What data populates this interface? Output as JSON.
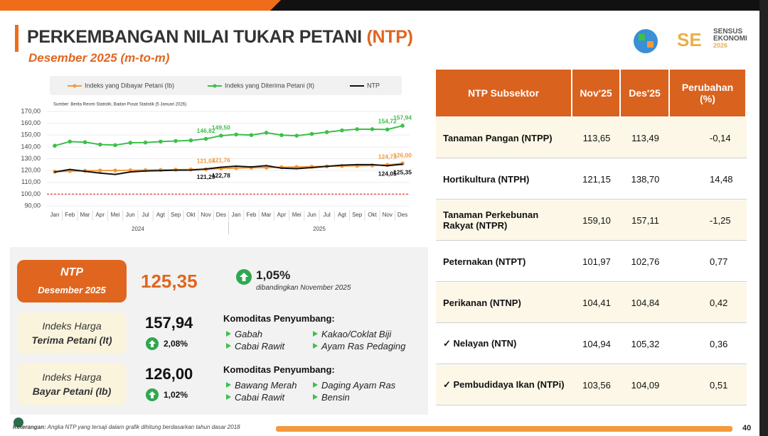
{
  "header": {
    "title": "PERKEMBANGAN NILAI TUKAR PETANI",
    "title_highlight": "(NTP)",
    "subtitle": "Desember 2025 (m-to-m)"
  },
  "logo": {
    "line1": "SENSUS",
    "line2": "EKONOMI",
    "line3": "2026"
  },
  "chart_data": {
    "type": "line",
    "source": "Sumber: Berita Resmi Statistik, Badan Pusat Statistik (5 Januari 2026)",
    "categories": [
      "Jan",
      "Feb",
      "Mar",
      "Apr",
      "Mei",
      "Jun",
      "Jul",
      "Agt",
      "Sep",
      "Okt",
      "Nov",
      "Des",
      "Jan",
      "Feb",
      "Mar",
      "Apr",
      "Mei",
      "Jun",
      "Jul",
      "Agt",
      "Sep",
      "Okt",
      "Nov",
      "Des"
    ],
    "x_groups": [
      "2024",
      "2025"
    ],
    "ylim": [
      90,
      170
    ],
    "yticks": [
      {
        "value": 90,
        "label": "90,00"
      },
      {
        "value": 100,
        "label": "100,00"
      },
      {
        "value": 110,
        "label": "110,00"
      },
      {
        "value": 120,
        "label": "120,00"
      },
      {
        "value": 130,
        "label": "130,00"
      },
      {
        "value": 140,
        "label": "140,00"
      },
      {
        "value": 150,
        "label": "150,00"
      },
      {
        "value": 160,
        "label": "160,00"
      },
      {
        "value": 170,
        "label": "170,00"
      }
    ],
    "reference_line": {
      "value": 100,
      "color": "#e5433b"
    },
    "series": [
      {
        "name": "Indeks yang Dibayar Petani (Ib)",
        "color": "#f39a3c",
        "marker": true,
        "label_side": "above",
        "values": [
          119,
          119.5,
          119.8,
          120,
          120,
          120.2,
          120.3,
          120.5,
          120.7,
          120.9,
          121.04,
          121.76,
          122,
          122.3,
          122.5,
          122.8,
          123,
          123.2,
          123.5,
          123.8,
          124,
          124.3,
          124.73,
          126
        ],
        "value_labels": [
          null,
          null,
          null,
          null,
          null,
          null,
          null,
          null,
          null,
          null,
          "121,04",
          "121,76",
          null,
          null,
          null,
          null,
          null,
          null,
          null,
          null,
          null,
          null,
          "124,73",
          "126,00"
        ]
      },
      {
        "name": "Indeks yang Diterima Petani (It)",
        "color": "#3cc04a",
        "marker": true,
        "label_side": "above",
        "values": [
          141,
          144.5,
          144,
          142,
          141.5,
          143.5,
          143.7,
          144.5,
          145,
          145.5,
          146.82,
          149.5,
          150.5,
          150,
          152,
          150,
          149.5,
          151,
          152.5,
          154,
          155,
          155,
          154.72,
          157.94
        ],
        "value_labels": [
          null,
          null,
          null,
          null,
          null,
          null,
          null,
          null,
          null,
          null,
          "146,82",
          "149,50",
          null,
          null,
          null,
          null,
          null,
          null,
          null,
          null,
          null,
          null,
          "154,72",
          "157,94"
        ]
      },
      {
        "name": "NTP",
        "color": "#111111",
        "marker": false,
        "label_side": "below",
        "values": [
          118.7,
          120.9,
          119.3,
          117.8,
          116.7,
          118.8,
          119.6,
          119.9,
          120.3,
          120.4,
          121.29,
          122.78,
          123.7,
          123,
          124.1,
          122,
          121.6,
          122.5,
          123.5,
          124.5,
          125,
          125,
          124.05,
          125.35
        ],
        "value_labels": [
          null,
          null,
          null,
          null,
          null,
          null,
          null,
          null,
          null,
          null,
          "121,29",
          "122,78",
          null,
          null,
          null,
          null,
          null,
          null,
          null,
          null,
          null,
          null,
          "124,05",
          "125,35"
        ]
      }
    ]
  },
  "summary": {
    "ntp": {
      "label": "NTP",
      "period": "Desember 2025",
      "value": "125,35",
      "change": "1,05%",
      "direction": "up",
      "comparison": "dibandingkan November 2025"
    },
    "it": {
      "label_line1": "Indeks Harga",
      "label_line2": "Terima Petani (It)",
      "value": "157,94",
      "change": "2,08%",
      "direction": "up",
      "commodities_title": "Komoditas Penyumbang:",
      "commodities": [
        "Gabah",
        "Cabai Rawit",
        "Kakao/Coklat Biji",
        "Ayam Ras Pedaging"
      ]
    },
    "ib": {
      "label_line1": "Indeks Harga",
      "label_line2": "Bayar Petani (Ib)",
      "value": "126,00",
      "change": "1,02%",
      "direction": "up",
      "commodities_title": "Komoditas Penyumbang:",
      "commodities": [
        "Bawang Merah",
        "Cabai Rawit",
        "Daging Ayam Ras",
        "Bensin"
      ]
    }
  },
  "table": {
    "headers": [
      "NTP Subsektor",
      "Nov'25",
      "Des'25",
      "Perubahan (%)"
    ],
    "rows": [
      {
        "name": "Tanaman Pangan (NTPP)",
        "nov": "113,65",
        "des": "113,49",
        "change": "-0,14",
        "direction": "down"
      },
      {
        "name": "Hortikultura (NTPH)",
        "nov": "121,15",
        "des": "138,70",
        "change": "14,48",
        "direction": "up"
      },
      {
        "name": "Tanaman Perkebunan Rakyat (NTPR)",
        "nov": "159,10",
        "des": "157,11",
        "change": "-1,25",
        "direction": "down"
      },
      {
        "name": "Peternakan (NTPT)",
        "nov": "101,97",
        "des": "102,76",
        "change": "0,77",
        "direction": "up"
      },
      {
        "name": "Perikanan (NTNP)",
        "nov": "104,41",
        "des": "104,84",
        "change": "0,42",
        "direction": "up"
      },
      {
        "name": "✓ Nelayan (NTN)",
        "nov": "104,94",
        "des": "105,32",
        "change": "0,36",
        "direction": "up"
      },
      {
        "name": "✓ Pembudidaya Ikan (NTPi)",
        "nov": "103,56",
        "des": "104,09",
        "change": "0,51",
        "direction": "up"
      }
    ]
  },
  "footer": {
    "note_label": "Keterangan:",
    "note": "Angka NTP yang tersaji dalam grafik dihitung berdasarkan tahun dasar 2018",
    "page": "40"
  }
}
